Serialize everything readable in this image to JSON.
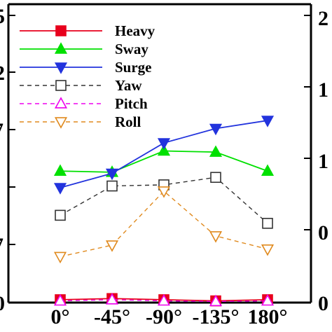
{
  "chart_data": {
    "type": "line",
    "categories": [
      "0°",
      "-45°",
      "-90°",
      "-135°",
      "180°"
    ],
    "ylim": [
      0,
      5
    ],
    "series": [
      {
        "name": "Heavy",
        "color": "#e8001c",
        "marker": "square-filled",
        "dashed": false,
        "values": [
          0.05,
          0.07,
          0.05,
          0.03,
          0.05
        ]
      },
      {
        "name": "Sway",
        "color": "#00e000",
        "marker": "triangle-up-filled",
        "dashed": false,
        "values": [
          2.29,
          2.27,
          2.64,
          2.62,
          2.29
        ]
      },
      {
        "name": "Surge",
        "color": "#2233dd",
        "marker": "triangle-down-filled",
        "dashed": false,
        "values": [
          2.0,
          2.25,
          2.78,
          3.03,
          3.17
        ]
      },
      {
        "name": "Yaw",
        "color": "#333333",
        "marker": "square-open",
        "dashed": true,
        "values": [
          1.52,
          2.03,
          2.05,
          2.18,
          1.38
        ]
      },
      {
        "name": "Pitch",
        "color": "#ee00ee",
        "marker": "triangle-up-open",
        "dashed": true,
        "values": [
          0.03,
          0.05,
          0.03,
          0.02,
          0.03
        ]
      },
      {
        "name": "Roll",
        "color": "#e08a1e",
        "marker": "triangle-down-open",
        "dashed": true,
        "values": [
          0.8,
          1.0,
          1.94,
          1.16,
          0.93
        ]
      }
    ],
    "legend_position": "top-left",
    "grid": false
  }
}
